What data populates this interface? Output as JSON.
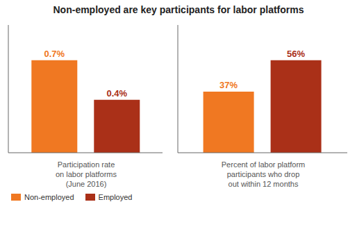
{
  "title": "Non-employed are key participants for labor platforms",
  "legend": "lower left",
  "chart_data": [
    {
      "type": "bar",
      "x_label": "Participation rate\non labor platforms\n(June 2016)",
      "categories": [
        null
      ],
      "series": [
        {
          "name": "Non-employed",
          "color": "#F07822",
          "values": [
            0.7
          ],
          "value_labels": [
            "0.7%"
          ]
        },
        {
          "name": "Employed",
          "color": "#AA3018",
          "values": [
            0.4
          ],
          "value_labels": [
            "0.4%"
          ]
        }
      ],
      "ylim": [
        0,
        0.966
      ],
      "grid": false,
      "data_labels": true,
      "tick_labels": false
    },
    {
      "type": "bar",
      "x_label": "Percent of labor platform\nparticipants who drop\nout within 12 months",
      "categories": [
        null
      ],
      "series": [
        {
          "name": "Non-employed",
          "color": "#F07822",
          "values": [
            37
          ],
          "value_labels": [
            "37%"
          ]
        },
        {
          "name": "Employed",
          "color": "#AA3018",
          "values": [
            56
          ],
          "value_labels": [
            "56%"
          ]
        }
      ],
      "ylim": [
        0,
        77.28
      ],
      "grid": false,
      "data_labels": true,
      "tick_labels": false
    }
  ]
}
